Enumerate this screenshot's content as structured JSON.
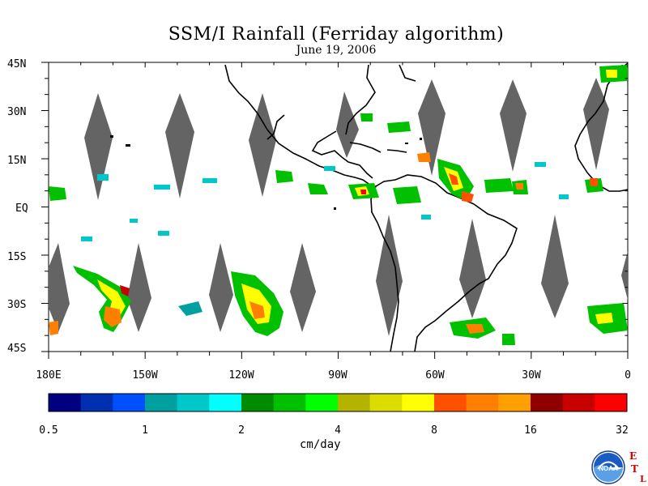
{
  "title": "SSM/I Rainfall (Ferriday algorithm)",
  "date": "June 19, 2006",
  "lat_labels": [
    "45N",
    "30N",
    "15N",
    "EQ",
    "15S",
    "30S",
    "45S"
  ],
  "lon_labels": [
    "180E",
    "150W",
    "120W",
    "90W",
    "60W",
    "30W",
    "0"
  ],
  "colorbar": {
    "units": "cm/day",
    "tick_labels": [
      "0.5",
      "1",
      "2",
      "4",
      "8",
      "16",
      "32"
    ],
    "colors": [
      "#000080",
      "#0030b0",
      "#0050ff",
      "#00a0a0",
      "#00c8c8",
      "#00ffff",
      "#008c00",
      "#00c000",
      "#00ff00",
      "#b4b400",
      "#dcdc00",
      "#ffff00",
      "#ff5000",
      "#ff8000",
      "#ffa000",
      "#900000",
      "#c80000",
      "#ff0000"
    ]
  },
  "map": {
    "lon_range": [
      -180,
      0
    ],
    "lat_range": [
      -45,
      45
    ],
    "colors": {
      "land": "#000000",
      "gap": "#646464",
      "ocean": "#ffffff"
    }
  },
  "logo": {
    "text": "NOAA",
    "letters": [
      "E",
      "T",
      "L"
    ]
  }
}
